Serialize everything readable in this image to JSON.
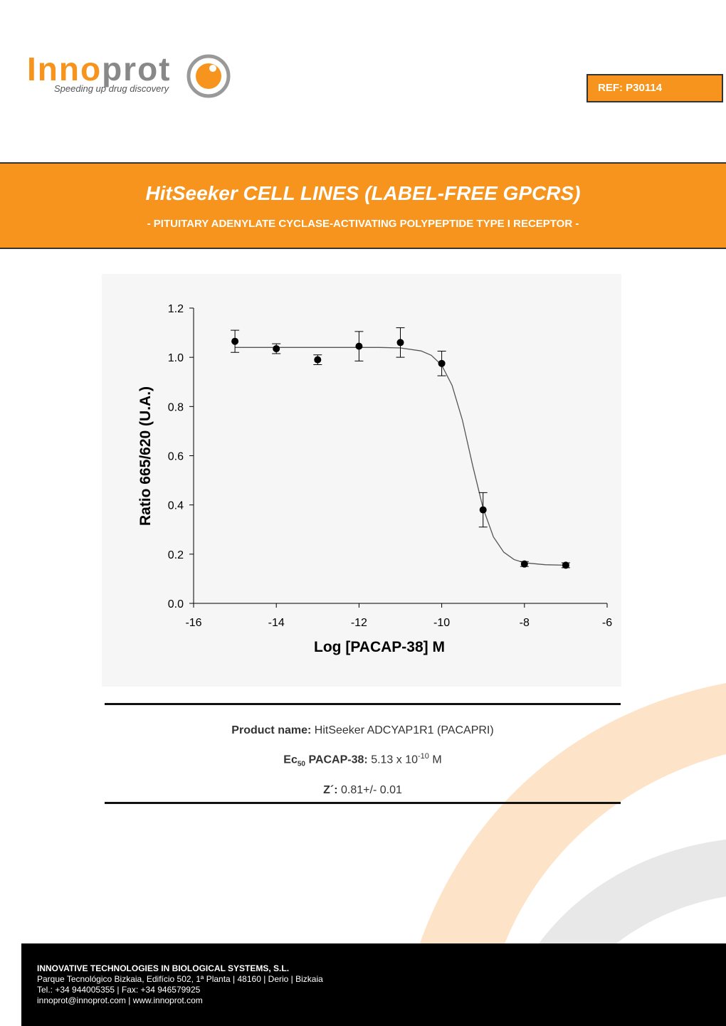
{
  "header": {
    "logo_inno": "Inno",
    "logo_prot": "prot",
    "logo_tagline": "Speeding up drug discovery",
    "ref": "REF: P30114"
  },
  "banner": {
    "title": "HitSeeker CELL LINES (LABEL-FREE GPCRS)",
    "subtitle": "- PITUITARY ADENYLATE CYCLASE-ACTIVATING POLYPEPTIDE TYPE I RECEPTOR -"
  },
  "chart_data": {
    "type": "scatter",
    "x_label": "Log [PACAP-38] M",
    "y_label": "Ratio 665/620 (U.A.)",
    "x": [
      -15,
      -14,
      -13,
      -12,
      -11,
      -10,
      -9,
      -8,
      -7
    ],
    "values": [
      1.065,
      1.035,
      0.99,
      1.045,
      1.06,
      0.975,
      0.38,
      0.16,
      0.155
    ],
    "errors": [
      0.045,
      0.02,
      0.02,
      0.06,
      0.06,
      0.05,
      0.07,
      0.01,
      0.01
    ],
    "color": "#000000",
    "fit": {
      "x": [
        -15,
        -14,
        -13,
        -12,
        -11.5,
        -11,
        -10.5,
        -10.25,
        -10,
        -9.75,
        -9.5,
        -9.25,
        -9,
        -8.75,
        -8.5,
        -8.25,
        -8,
        -7.5,
        -7
      ],
      "values": [
        1.04,
        1.04,
        1.04,
        1.04,
        1.04,
        1.038,
        1.026,
        1.008,
        0.968,
        0.886,
        0.745,
        0.559,
        0.387,
        0.27,
        0.208,
        0.178,
        0.165,
        0.157,
        0.155
      ],
      "color": "#555555"
    },
    "xlim": [
      -16,
      -6
    ],
    "xticks": [
      -16,
      -14,
      -12,
      -10,
      -8,
      -6
    ],
    "ylim": [
      0,
      1.2
    ],
    "yticks": [
      {
        "value": 0,
        "label": "0.0"
      },
      0.2,
      0.4,
      0.6,
      0.8,
      {
        "value": 1,
        "label": "1.0"
      },
      1.2
    ]
  },
  "product": {
    "name_label": "Product name:",
    "name_value": "HitSeeker ADCYAP1R1 (PACAPRI)",
    "ec_label": "Ec",
    "ec_sub": "50",
    "ec_label2": "PACAP-38:",
    "ec_value": "5.13 x 10",
    "ec_exp": "-10",
    "ec_unit": "M",
    "z_label": "Z´:",
    "z_value": "0.81+/- 0.01"
  },
  "footer": {
    "company": "INNOVATIVE TECHNOLOGIES IN BIOLOGICAL SYSTEMS, S.L.",
    "address": "Parque Tecnológico Bizkaia, Edifício 502, 1ª Planta | 48160 | Derio | Bizkaia",
    "phone": "Tel.: +34 944005355 | Fax: +34 946579925",
    "web": "innoprot@innoprot.com | www.innoprot.com"
  }
}
